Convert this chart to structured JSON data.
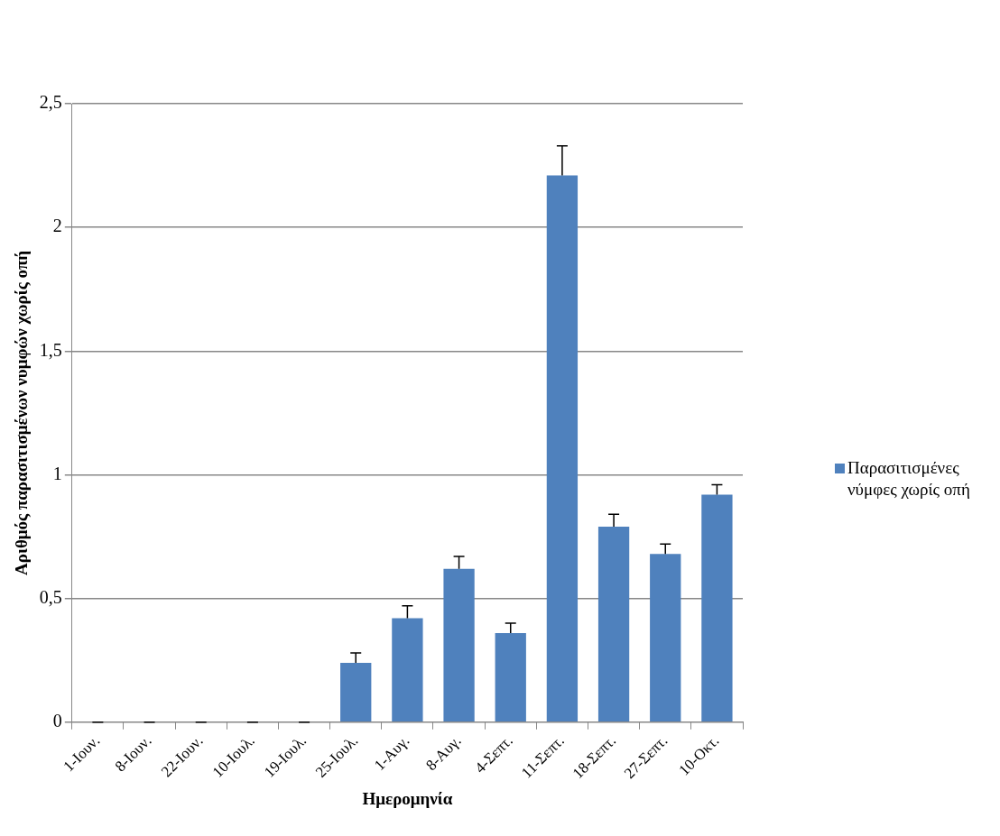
{
  "chart_data": {
    "type": "bar",
    "xlabel": "Ημερομηνία",
    "ylabel": "Αριθμός παρασιτισμένων νυμφών χωρίς οπή",
    "categories": [
      "1-Ιουν.",
      "8-Ιουν.",
      "22-Ιουν.",
      "10-Ιουλ.",
      "19-Ιουλ.",
      "25-Ιουλ.",
      "1-Αυγ.",
      "8-Αυγ.",
      "4-Σεπτ.",
      "11-Σεπτ.",
      "18-Σεπτ.",
      "27-Σεπτ.",
      "10-Οκτ."
    ],
    "series": [
      {
        "name": "Παρασιτισμένες νύμφες χωρίς οπή",
        "color": "#4f81bd",
        "values": [
          0,
          0,
          0,
          0,
          0,
          0.24,
          0.42,
          0.62,
          0.36,
          2.21,
          0.79,
          0.68,
          0.92
        ],
        "errors": [
          [
            0,
            0
          ],
          [
            0,
            0
          ],
          [
            0,
            0
          ],
          [
            0,
            0
          ],
          [
            0,
            0
          ],
          [
            0.24,
            0.28
          ],
          [
            0.42,
            0.47
          ],
          [
            0.62,
            0.67
          ],
          [
            0.36,
            0.4
          ],
          [
            2.21,
            2.33
          ],
          [
            0.79,
            0.84
          ],
          [
            0.68,
            0.72
          ],
          [
            0.92,
            0.96
          ]
        ]
      }
    ],
    "ylim": [
      0,
      2.5
    ],
    "yticks": [
      0,
      {
        "value": 0.5,
        "label": "0,5"
      },
      1,
      {
        "value": 1.5,
        "label": "1,5"
      },
      2,
      {
        "value": 2.5,
        "label": "2,5"
      }
    ],
    "grid": "y",
    "legend": "right"
  }
}
